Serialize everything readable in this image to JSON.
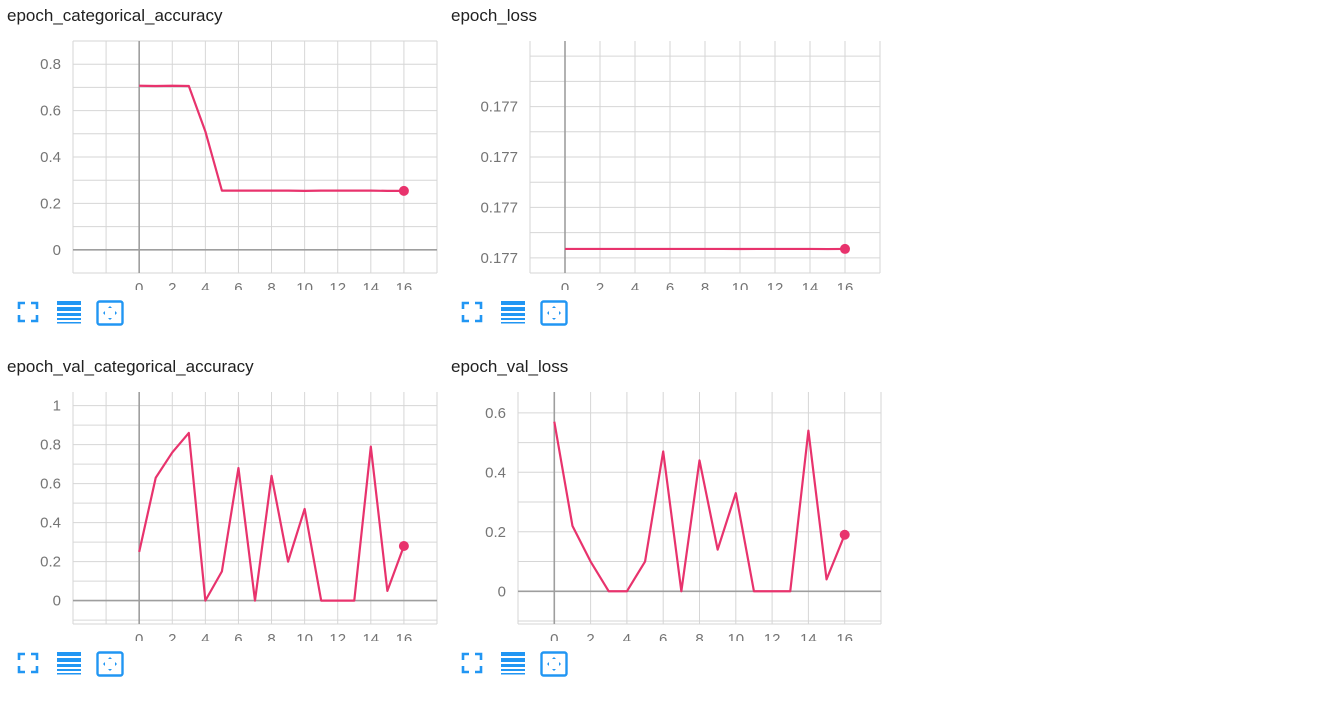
{
  "colors": {
    "series": "#e8336d",
    "grid": "#d6d6d6",
    "axis": "#9e9e9e",
    "tick_text": "#757575",
    "tool": "#2196f3"
  },
  "tools": {
    "icons": [
      "fullscreen-icon",
      "list-icon",
      "fit-to-data-icon"
    ]
  },
  "charts": [
    {
      "title": "epoch_categorical_accuracy",
      "chart_data": {
        "type": "line",
        "x": [
          0,
          1,
          2,
          3,
          4,
          5,
          6,
          7,
          8,
          9,
          10,
          11,
          12,
          13,
          14,
          15,
          16
        ],
        "y": [
          0.707,
          0.706,
          0.707,
          0.706,
          0.51,
          0.255,
          0.255,
          0.255,
          0.255,
          0.255,
          0.254,
          0.255,
          0.255,
          0.255,
          0.255,
          0.254,
          0.254
        ],
        "xlim": [
          -4,
          18
        ],
        "ylim": [
          -0.1,
          0.9
        ],
        "xticks": [
          0,
          2,
          4,
          6,
          8,
          10,
          12,
          14,
          16
        ],
        "xtick_labels": [
          "0",
          "2",
          "4",
          "6",
          "8",
          "10",
          "12",
          "14",
          "16"
        ],
        "yticks": [
          0,
          0.2,
          0.4,
          0.6,
          0.8
        ],
        "ytick_labels": [
          "0",
          "0.2",
          "0.4",
          "0.6",
          "0.8"
        ],
        "grid": true
      }
    },
    {
      "title": "epoch_loss",
      "chart_data": {
        "type": "line",
        "x": [
          0,
          1,
          2,
          3,
          4,
          5,
          6,
          7,
          8,
          9,
          10,
          11,
          12,
          13,
          14,
          15,
          16
        ],
        "y": [
          0.17727,
          0.17723,
          0.17728,
          0.17727,
          0.17727,
          0.17727,
          0.17726,
          0.17727,
          0.17727,
          0.17733,
          0.17585,
          0.17727,
          0.17727,
          0.17727,
          0.17727,
          0.17457,
          0.17727
        ],
        "xlim": [
          -2,
          18
        ],
        "ylim": [
          -0.3,
          4.3
        ],
        "ytick_positions": [
          0,
          1,
          2,
          3
        ],
        "xticks": [
          0,
          2,
          4,
          6,
          8,
          10,
          12,
          14,
          16
        ],
        "xtick_labels": [
          "0",
          "2",
          "4",
          "6",
          "8",
          "10",
          "12",
          "14",
          "16"
        ],
        "ytick_labels": [
          "0.177",
          "0.177",
          "0.177",
          "0.177"
        ],
        "grid": true
      }
    },
    {
      "title": "epoch_val_categorical_accuracy",
      "chart_data": {
        "type": "line",
        "x": [
          0,
          1,
          2,
          3,
          4,
          5,
          6,
          7,
          8,
          9,
          10,
          11,
          12,
          13,
          14,
          15,
          16
        ],
        "y": [
          0.25,
          0.63,
          0.76,
          0.86,
          0.0,
          0.15,
          0.68,
          0.0,
          0.64,
          0.2,
          0.47,
          0.0,
          0.0,
          0.0,
          0.79,
          0.05,
          0.28
        ],
        "xlim": [
          -4,
          18
        ],
        "ylim": [
          -0.12,
          1.07
        ],
        "xticks": [
          0,
          2,
          4,
          6,
          8,
          10,
          12,
          14,
          16
        ],
        "xtick_labels": [
          "0",
          "2",
          "4",
          "6",
          "8",
          "10",
          "12",
          "14",
          "16"
        ],
        "yticks": [
          0,
          0.2,
          0.4,
          0.6,
          0.8,
          1
        ],
        "ytick_labels": [
          "0",
          "0.2",
          "0.4",
          "0.6",
          "0.8",
          "1"
        ],
        "grid": true
      }
    },
    {
      "title": "epoch_val_loss",
      "chart_data": {
        "type": "line",
        "x": [
          0,
          1,
          2,
          3,
          4,
          5,
          6,
          7,
          8,
          9,
          10,
          11,
          12,
          13,
          14,
          15,
          16
        ],
        "y": [
          0.57,
          0.22,
          0.1,
          0.0,
          0.0,
          0.1,
          0.47,
          0.0,
          0.44,
          0.14,
          0.33,
          0.0,
          0.0,
          0.0,
          0.54,
          0.04,
          0.19
        ],
        "xlim": [
          -2,
          18
        ],
        "ylim": [
          -0.11,
          0.67
        ],
        "xticks": [
          0,
          2,
          4,
          6,
          8,
          10,
          12,
          14,
          16
        ],
        "xtick_labels": [
          "0",
          "2",
          "4",
          "6",
          "8",
          "10",
          "12",
          "14",
          "16"
        ],
        "yticks": [
          0,
          0.2,
          0.4,
          0.6
        ],
        "ytick_labels": [
          "0",
          "0.2",
          "0.4",
          "0.6"
        ],
        "grid": true
      }
    }
  ]
}
